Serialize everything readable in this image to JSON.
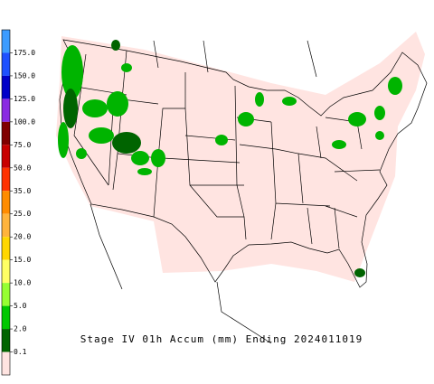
{
  "legend": {
    "labels": [
      "175.0",
      "150.0",
      "125.0",
      "100.0",
      "75.0",
      "50.0",
      "35.0",
      "25.0",
      "20.0",
      "15.0",
      "10.0",
      "5.0",
      "2.0",
      "0.1"
    ],
    "colors": [
      "#3c9cff",
      "#1e50ff",
      "#0000c8",
      "#8a2be2",
      "#800000",
      "#c80000",
      "#ff3200",
      "#ff8c00",
      "#ffb43c",
      "#ffd700",
      "#ffff64",
      "#96ff32",
      "#00c800",
      "#006400",
      "#ffe4e1"
    ]
  },
  "title": "Stage IV 01h Accum (mm) Ending 2024011019"
}
